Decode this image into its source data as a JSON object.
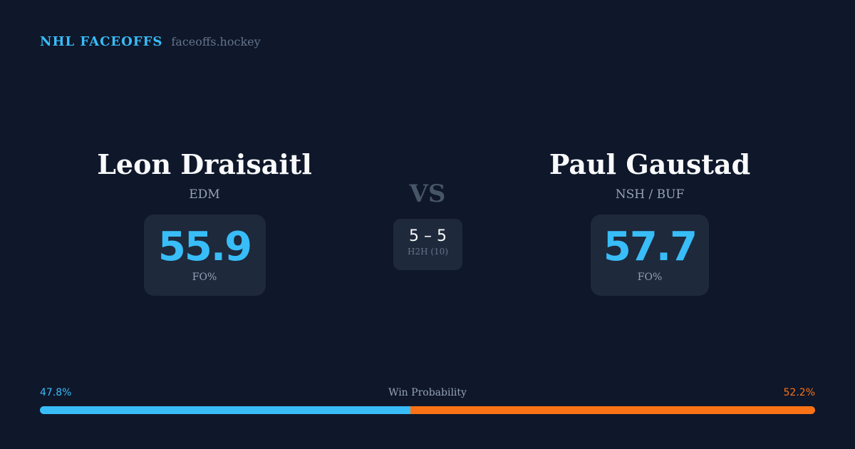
{
  "brand": {
    "name": "NHL FACEOFFS",
    "site": "faceoffs.hockey"
  },
  "players": [
    {
      "name": "Leon Draisaitl",
      "team": "EDM",
      "fo_pct": "55.9",
      "fo_label": "FO%"
    },
    {
      "name": "Paul Gaustad",
      "team": "NSH / BUF",
      "fo_pct": "57.7",
      "fo_label": "FO%"
    }
  ],
  "vs": "VS",
  "h2h": {
    "score": "5 – 5",
    "label": "H2H (10)"
  },
  "win_probability": {
    "title": "Win Probability",
    "left": "47.8%",
    "right": "52.2%",
    "left_value": 47.8,
    "right_value": 52.2
  },
  "colors": {
    "background": "#0f172a",
    "card": "#1e293b",
    "accent_left": "#38bdf8",
    "accent_right": "#f97316"
  }
}
